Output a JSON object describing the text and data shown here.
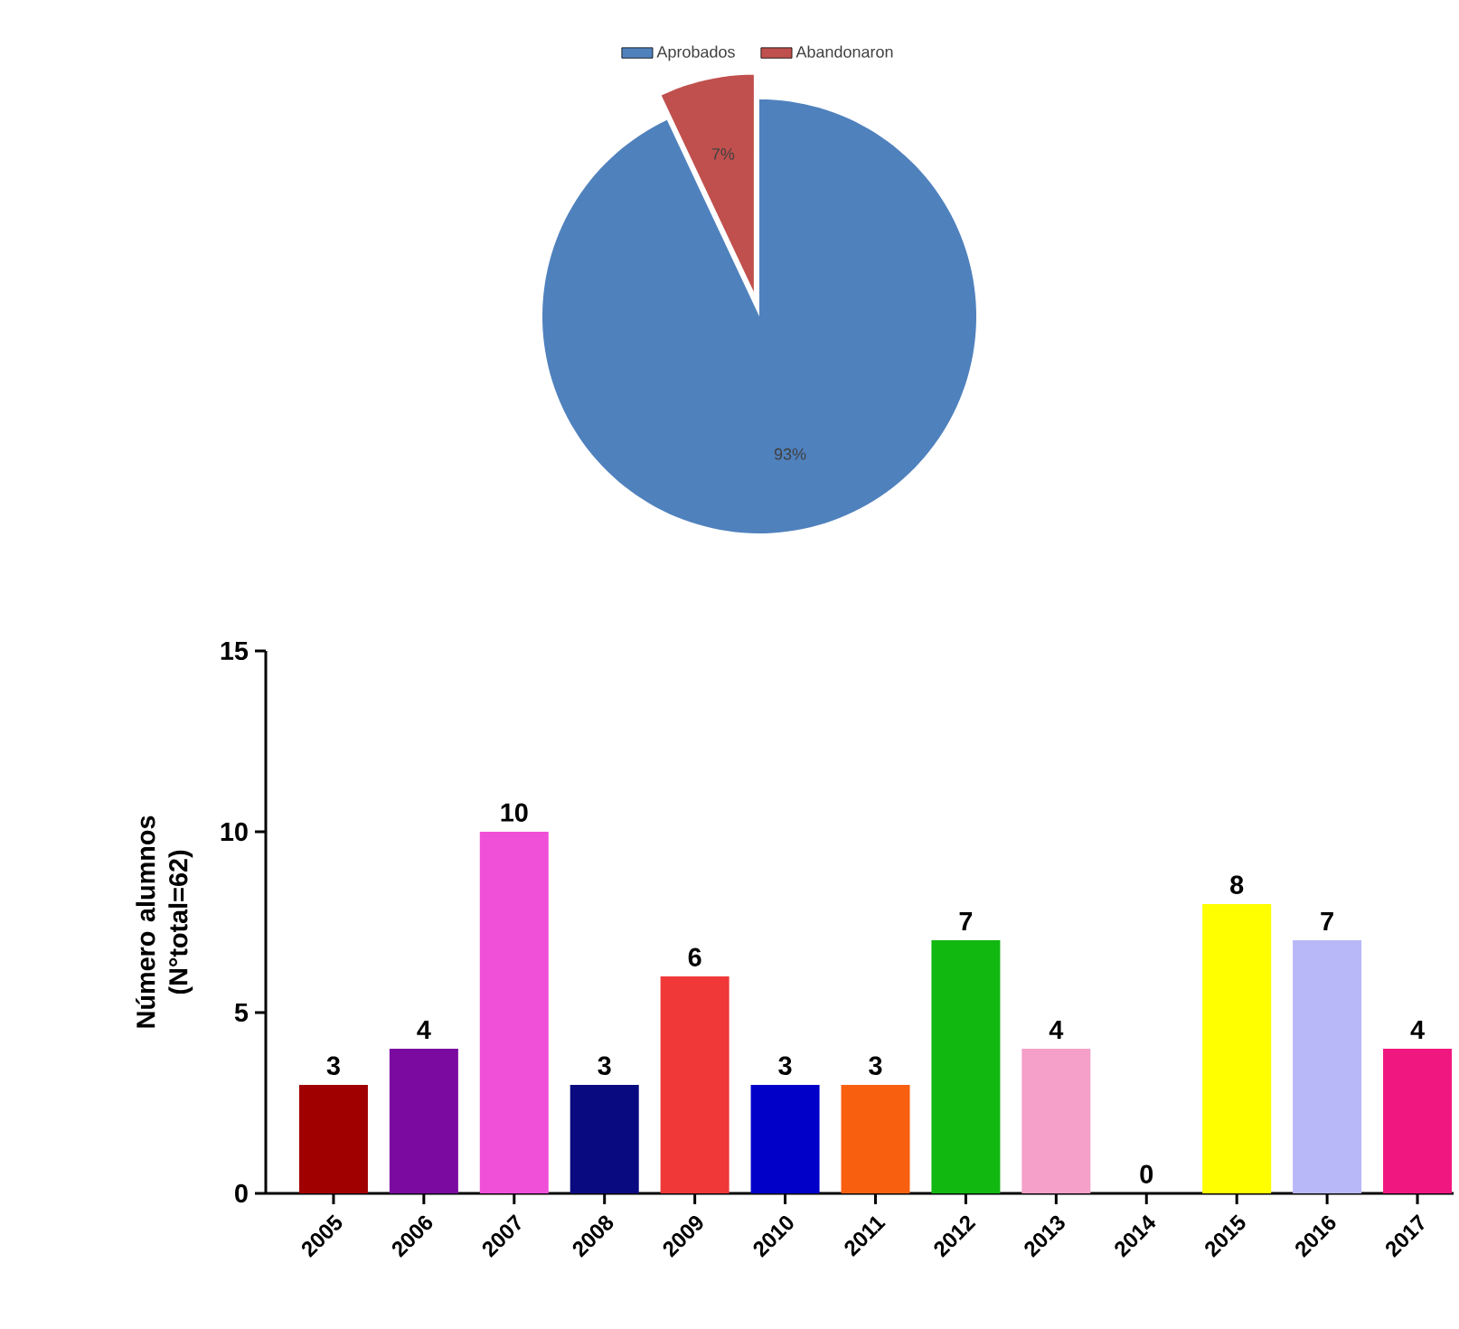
{
  "chart_data": [
    {
      "type": "pie",
      "categories": [
        "Aprobados",
        "Abandonaron"
      ],
      "values": [
        93,
        7
      ],
      "colors": [
        "#4f81bd",
        "#c0504d"
      ],
      "value_labels": [
        "93%",
        "7%"
      ],
      "legend": "top"
    },
    {
      "type": "bar",
      "ylabel": "Número alumnos (N°total=62)",
      "categories": [
        "2005",
        "2006",
        "2007",
        "2008",
        "2009",
        "2010",
        "2011",
        "2012",
        "2013",
        "2014",
        "2015",
        "2016",
        "2017"
      ],
      "values": [
        3,
        4,
        10,
        3,
        6,
        3,
        3,
        7,
        4,
        0,
        8,
        7,
        4
      ],
      "colors": [
        "#a00000",
        "#7b0aa0",
        "#f050d8",
        "#0a0a80",
        "#f03838",
        "#0000c8",
        "#f86010",
        "#10b810",
        "#f4a0c8",
        "#cccccc",
        "#ffff00",
        "#b8b8f8",
        "#f01880"
      ],
      "ylim": [
        0,
        15
      ],
      "yticks": [
        0,
        5,
        10,
        15
      ],
      "data_labels": true
    }
  ]
}
